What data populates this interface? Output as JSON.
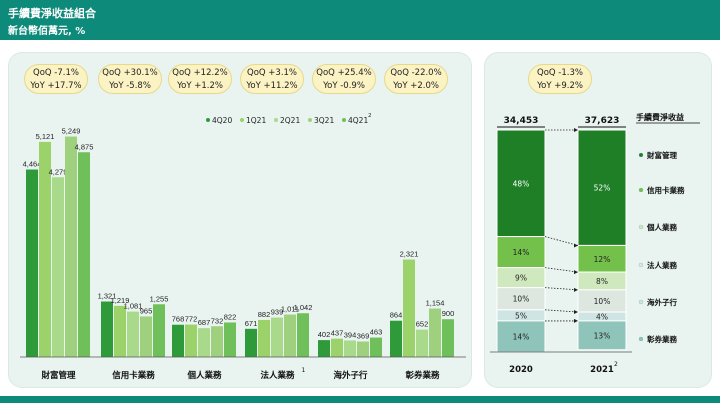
{
  "header": {
    "title": "手續費淨收益組合",
    "subtitle": "新台幣佰萬元, %"
  },
  "chart_data": [
    {
      "type": "bar",
      "series": [
        {
          "name": "4Q20",
          "color": "#2e9a3a"
        },
        {
          "name": "1Q21",
          "color": "#9bd36a"
        },
        {
          "name": "2Q21",
          "color": "#a9d98b"
        },
        {
          "name": "3Q21",
          "color": "#9fd07e"
        },
        {
          "name": "4Q21",
          "superscript": "2",
          "color": "#6fbf5a"
        }
      ],
      "categories": [
        {
          "label": "財富管理",
          "sup": "",
          "values": [
            4464,
            5121,
            4279,
            5249,
            4875
          ],
          "qoq": "-7.1%",
          "yoy": "+17.7%"
        },
        {
          "label": "信用卡業務",
          "sup": "",
          "values": [
            1321,
            1219,
            1081,
            965,
            1255
          ],
          "qoq": "+30.1%",
          "yoy": "-5.8%"
        },
        {
          "label": "個人業務",
          "sup": "",
          "values": [
            768,
            772,
            687,
            732,
            822
          ],
          "qoq": "+12.2%",
          "yoy": "+1.2%"
        },
        {
          "label": "法人業務",
          "sup": "1",
          "values": [
            671,
            882,
            939,
            1011,
            1042
          ],
          "qoq": "+3.1%",
          "yoy": "+11.2%"
        },
        {
          "label": "海外子行",
          "sup": "",
          "values": [
            402,
            437,
            394,
            369,
            463
          ],
          "qoq": "+25.4%",
          "yoy": "-0.9%"
        },
        {
          "label": "彰券業務",
          "sup": "",
          "values": [
            864,
            2321,
            652,
            1154,
            900
          ],
          "qoq": "-22.0%",
          "yoy": "+2.0%"
        }
      ],
      "data_labels": [
        [
          "4,464",
          "5,121",
          "4,279",
          "5,249",
          "4,875"
        ],
        [
          "1,321",
          "1,219",
          "1,081",
          "965",
          "1,255"
        ],
        [
          "768",
          "772",
          "687",
          "732",
          "822"
        ],
        [
          "671",
          "882",
          "939",
          "1,011",
          "1,042"
        ],
        [
          "402",
          "437",
          "394",
          "369",
          "463"
        ],
        [
          "864",
          "2,321",
          "652",
          "1,154",
          "900"
        ]
      ],
      "qoq_prefix": "QoQ",
      "yoy_prefix": "YoY"
    },
    {
      "type": "bar",
      "stacked": true,
      "title": "手續費淨收益",
      "categories": [
        {
          "label": "2020",
          "sup": "",
          "total": "34,453"
        },
        {
          "label": "2021",
          "sup": "2",
          "total": "37,623"
        }
      ],
      "series": [
        {
          "name": "財富管理",
          "color": "#1f7f27",
          "values": [
            48,
            52
          ],
          "labels": [
            "48%",
            "52%"
          ]
        },
        {
          "name": "信用卡業務",
          "color": "#73c04b",
          "values": [
            14,
            12
          ],
          "labels": [
            "14%",
            "12%"
          ]
        },
        {
          "name": "個人業務",
          "color": "#cfe8bd",
          "values": [
            9,
            8
          ],
          "labels": [
            "9%",
            "8%"
          ]
        },
        {
          "name": "法人業務",
          "color": "#dde7e0",
          "values": [
            10,
            10
          ],
          "labels": [
            "10%",
            "10%"
          ]
        },
        {
          "name": "海外子行",
          "color": "#cfe5e4",
          "values": [
            5,
            4
          ],
          "labels": [
            "5%",
            "4%"
          ]
        },
        {
          "name": "彰券業務",
          "color": "#8fc4ba",
          "values": [
            14,
            13
          ],
          "labels": [
            "14%",
            "13%"
          ]
        }
      ],
      "qoq": "-1.3%",
      "yoy": "+9.2%"
    }
  ]
}
